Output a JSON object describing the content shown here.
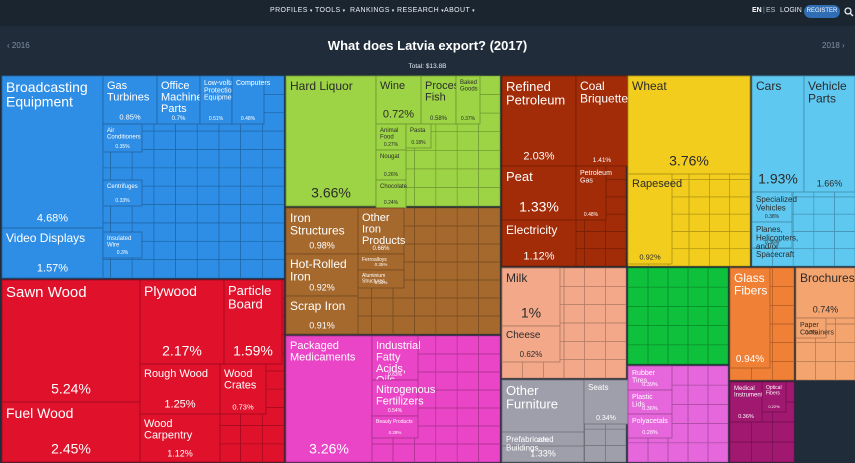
{
  "nav": {
    "items": [
      "PROFILES",
      "TOOLS",
      "RANKINGS",
      "RESEARCH",
      "ABOUT"
    ],
    "lang_en": "EN",
    "lang_sep": "|",
    "lang_es": "ES",
    "login": "LOGIN",
    "register": "REGISTER"
  },
  "year_prev": "‹ 2016",
  "year_next": "2018 ›",
  "title": "What does Latvia export? (2017)",
  "total": "Total: $13.8B",
  "colors": {
    "machinery": "#2e8ee6",
    "metals_chem": "#f4fffb",
    "stone": "#e8ff17",
    "wood": "#e0112b",
    "foodstuffs": "#9cd445",
    "metals": "#a5692e",
    "chemicals": "#ea45c6",
    "mineral": "#a22b08",
    "vegetable": "#f2cd1d",
    "transport": "#5ec8f1",
    "animal": "#f2a889",
    "misc": "#9f9fab",
    "textiles": "#0ec03b",
    "instruments": "#a11870",
    "plastics": "#e667dc"
  },
  "chart_data": {
    "type": "treemap",
    "title": "What does Latvia export? (2017)",
    "subtitle": "Total: $13.8B",
    "items": [
      {
        "name": "Broadcasting Equipment",
        "share": "4.68%",
        "sector": "machinery"
      },
      {
        "name": "Video Displays",
        "share": "1.57%",
        "sector": "machinery"
      },
      {
        "name": "Gas Turbines",
        "share": "0.85%",
        "sector": "machinery"
      },
      {
        "name": "Office Machine Parts",
        "share": "0.7%",
        "sector": "machinery"
      },
      {
        "name": "Low-voltage Protection Equipment",
        "share": "0.51%",
        "sector": "machinery"
      },
      {
        "name": "Computers",
        "share": "0.48%",
        "sector": "machinery"
      },
      {
        "name": "Air Conditioners",
        "share": "0.35%",
        "sector": "machinery"
      },
      {
        "name": "Centrifuges",
        "share": "0.33%",
        "sector": "machinery"
      },
      {
        "name": "Insulated Wire",
        "share": "0.3%",
        "sector": "machinery"
      },
      {
        "name": "Sawn Wood",
        "share": "5.24%",
        "sector": "wood"
      },
      {
        "name": "Fuel Wood",
        "share": "2.45%",
        "sector": "wood"
      },
      {
        "name": "Plywood",
        "share": "2.17%",
        "sector": "wood"
      },
      {
        "name": "Particle Board",
        "share": "1.59%",
        "sector": "wood"
      },
      {
        "name": "Rough Wood",
        "share": "1.25%",
        "sector": "wood"
      },
      {
        "name": "Wood Crates",
        "share": "0.73%",
        "sector": "wood"
      },
      {
        "name": "Wood Carpentry",
        "share": "1.12%",
        "sector": "wood"
      },
      {
        "name": "Hard Liquor",
        "share": "3.66%",
        "sector": "foodstuffs"
      },
      {
        "name": "Wine",
        "share": "0.72%",
        "sector": "foodstuffs"
      },
      {
        "name": "Processed Fish",
        "share": "0.58%",
        "sector": "foodstuffs"
      },
      {
        "name": "Baked Goods",
        "share": "0.37%",
        "sector": "foodstuffs"
      },
      {
        "name": "Animal Food",
        "share": "0.27%",
        "sector": "foodstuffs"
      },
      {
        "name": "Pasta",
        "share": "0.18%",
        "sector": "foodstuffs"
      },
      {
        "name": "Nougat",
        "share": "0.26%",
        "sector": "foodstuffs"
      },
      {
        "name": "Chocolate",
        "share": "0.24%",
        "sector": "foodstuffs"
      },
      {
        "name": "Iron Structures",
        "share": "0.98%",
        "sector": "metals"
      },
      {
        "name": "Other Iron Products",
        "share": "0.66%",
        "sector": "metals"
      },
      {
        "name": "Hot-Rolled Iron",
        "share": "0.92%",
        "sector": "metals"
      },
      {
        "name": "Ferroalloys",
        "share": "0.35%",
        "sector": "metals"
      },
      {
        "name": "Scrap Iron",
        "share": "0.91%",
        "sector": "metals"
      },
      {
        "name": "Aluminium Structures",
        "share": "0.34%",
        "sector": "metals"
      },
      {
        "name": "Packaged Medicaments",
        "share": "3.26%",
        "sector": "chemicals"
      },
      {
        "name": "Industrial Fatty Acids, Oils and Alcohols",
        "share": "0.63%",
        "sector": "chemicals"
      },
      {
        "name": "Nitrogenous Fertilizers",
        "share": "0.54%",
        "sector": "chemicals"
      },
      {
        "name": "Beauty Products",
        "share": "0.28%",
        "sector": "chemicals"
      },
      {
        "name": "Refined Petroleum",
        "share": "2.03%",
        "sector": "mineral"
      },
      {
        "name": "Coal Briquettes",
        "share": "1.41%",
        "sector": "mineral"
      },
      {
        "name": "Peat",
        "share": "1.33%",
        "sector": "mineral"
      },
      {
        "name": "Electricity",
        "share": "1.12%",
        "sector": "mineral"
      },
      {
        "name": "Petroleum Gas",
        "share": "0.48%",
        "sector": "mineral"
      },
      {
        "name": "Wheat",
        "share": "3.76%",
        "sector": "vegetable"
      },
      {
        "name": "Rapeseed",
        "share": "0.92%",
        "sector": "vegetable"
      },
      {
        "name": "Cars",
        "share": "1.93%",
        "sector": "transport"
      },
      {
        "name": "Vehicle Parts",
        "share": "1.66%",
        "sector": "transport"
      },
      {
        "name": "Specialized Vehicles",
        "share": "0.38%",
        "sector": "transport"
      },
      {
        "name": "Planes, Helicopters, and/or Spacecraft",
        "share": "0.36%",
        "sector": "transport"
      },
      {
        "name": "Milk",
        "share": "1%",
        "sector": "animal"
      },
      {
        "name": "Cheese",
        "share": "0.62%",
        "sector": "animal"
      },
      {
        "name": "Other Furniture",
        "share": "1.33%",
        "sector": "misc"
      },
      {
        "name": "Seats",
        "share": "0.34%",
        "sector": "misc"
      },
      {
        "name": "Prefabricated Buildings",
        "share": "0.7%",
        "sector": "misc"
      },
      {
        "name": "Glass Fibers",
        "share": "0.94%",
        "sector": "stone"
      },
      {
        "name": "Brochures",
        "share": "0.74%",
        "sector": "paper"
      },
      {
        "name": "Paper Containers",
        "share": "0.3%",
        "sector": "paper"
      },
      {
        "name": "Rubber Tires",
        "share": "0.39%",
        "sector": "plastics"
      },
      {
        "name": "Plastic Lids",
        "share": "0.36%",
        "sector": "plastics"
      },
      {
        "name": "Polyacetals",
        "share": "0.28%",
        "sector": "plastics"
      },
      {
        "name": "Medical Instruments",
        "share": "0.36%",
        "sector": "instruments"
      },
      {
        "name": "Optical Fibers",
        "share": "0.22%",
        "sector": "instruments"
      }
    ]
  }
}
